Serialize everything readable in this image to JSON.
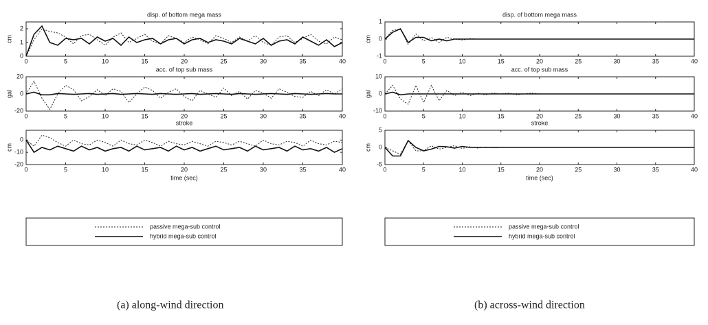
{
  "chart_data": [
    {
      "type": "line",
      "title": "disp. of bottom mega mass",
      "ylabel": "cm",
      "x": [
        0,
        1,
        2,
        3,
        4,
        5,
        6,
        7,
        8,
        9,
        10,
        11,
        12,
        13,
        14,
        15,
        16,
        17,
        18,
        19,
        20,
        21,
        22,
        23,
        24,
        25,
        26,
        27,
        28,
        29,
        30,
        31,
        32,
        33,
        34,
        35,
        36,
        37,
        38,
        39,
        40
      ],
      "xlim": [
        0,
        40
      ],
      "xticks": [
        0,
        5,
        10,
        15,
        20,
        25,
        30,
        35,
        40
      ],
      "ylim": [
        0,
        2.5
      ],
      "yticks": [
        0,
        1,
        2
      ],
      "series": [
        {
          "name": "passive mega-sub control",
          "color": "#222222",
          "dash": "2,2",
          "values": [
            0,
            1.2,
            2.0,
            1.8,
            1.7,
            1.4,
            0.9,
            1.5,
            1.6,
            1.2,
            0.8,
            1.4,
            1.7,
            1.0,
            1.3,
            1.6,
            1.1,
            0.9,
            1.5,
            1.3,
            1.0,
            1.4,
            1.2,
            0.9,
            1.5,
            1.3,
            1.0,
            1.4,
            1.1,
            1.5,
            1.0,
            0.8,
            1.4,
            1.5,
            1.0,
            1.3,
            1.6,
            1.1,
            0.9,
            1.4,
            1.2
          ]
        },
        {
          "name": "hybrid mega-sub control",
          "color": "#111111",
          "values": [
            0,
            1.6,
            2.2,
            1.0,
            0.8,
            1.3,
            1.2,
            1.3,
            0.9,
            1.4,
            1.1,
            1.3,
            0.8,
            1.4,
            1.0,
            1.2,
            1.3,
            0.9,
            1.2,
            1.3,
            0.9,
            1.2,
            1.3,
            1.0,
            1.2,
            1.1,
            0.9,
            1.3,
            1.1,
            0.9,
            1.3,
            0.8,
            1.1,
            1.2,
            0.9,
            1.4,
            1.1,
            0.8,
            1.2,
            0.7,
            1.0
          ]
        }
      ]
    },
    {
      "type": "line",
      "title": "acc. of top sub mass",
      "ylabel": "gal",
      "x": [
        0,
        1,
        2,
        3,
        4,
        5,
        6,
        7,
        8,
        9,
        10,
        11,
        12,
        13,
        14,
        15,
        16,
        17,
        18,
        19,
        20,
        21,
        22,
        23,
        24,
        25,
        26,
        27,
        28,
        29,
        30,
        31,
        32,
        33,
        34,
        35,
        36,
        37,
        38,
        39,
        40
      ],
      "xlim": [
        0,
        40
      ],
      "xticks": [
        0,
        5,
        10,
        15,
        20,
        25,
        30,
        35,
        40
      ],
      "ylim": [
        -20,
        20
      ],
      "yticks": [
        -20,
        0,
        20
      ],
      "series": [
        {
          "name": "passive mega-sub control",
          "color": "#222222",
          "dash": "2,2",
          "values": [
            0,
            15,
            -5,
            -18,
            0,
            10,
            5,
            -8,
            -3,
            5,
            -2,
            6,
            3,
            -10,
            0,
            8,
            4,
            -5,
            2,
            6,
            -3,
            -8,
            4,
            0,
            -4,
            7,
            -2,
            3,
            -6,
            4,
            1,
            -5,
            6,
            2,
            -3,
            -4,
            3,
            -2,
            5,
            0,
            6
          ]
        },
        {
          "name": "hybrid mega-sub control",
          "color": "#111111",
          "values": [
            0,
            2,
            -1,
            -1,
            0.5,
            0,
            -0.5,
            0,
            0.5,
            -0.5,
            0,
            0.5,
            -0.5,
            0,
            0.5,
            0,
            -0.5,
            0.5,
            0,
            -0.5,
            0,
            0.5,
            -0.5,
            0,
            0.5,
            0,
            -0.5,
            0.5,
            0,
            -0.5,
            0,
            0.5,
            0,
            -0.5,
            0.5,
            0,
            -0.5,
            0,
            0.5,
            0,
            0
          ]
        }
      ]
    },
    {
      "type": "line",
      "title": "stroke",
      "ylabel": "cm",
      "xlabel": "time (sec)",
      "x": [
        0,
        1,
        2,
        3,
        4,
        5,
        6,
        7,
        8,
        9,
        10,
        11,
        12,
        13,
        14,
        15,
        16,
        17,
        18,
        19,
        20,
        21,
        22,
        23,
        24,
        25,
        26,
        27,
        28,
        29,
        30,
        31,
        32,
        33,
        34,
        35,
        36,
        37,
        38,
        39,
        40
      ],
      "xlim": [
        0,
        40
      ],
      "xticks": [
        0,
        5,
        10,
        15,
        20,
        25,
        30,
        35,
        40
      ],
      "ylim": [
        -20,
        8
      ],
      "yticks": [
        -20,
        -10,
        0
      ],
      "series": [
        {
          "name": "passive mega-sub control",
          "color": "#222222",
          "dash": "2,2",
          "values": [
            0,
            -5,
            4,
            2,
            -2,
            -5,
            0,
            -3,
            -4,
            0,
            -2,
            -5,
            0,
            -3,
            -4,
            0,
            -2,
            -5,
            -1,
            -3,
            -4,
            -1,
            -3,
            -5,
            -1,
            -2,
            -4,
            -1,
            -3,
            -5,
            0,
            -3,
            -4,
            -1,
            -2,
            -5,
            0,
            -3,
            -4,
            -1,
            -2
          ]
        },
        {
          "name": "hybrid mega-sub control",
          "color": "#111111",
          "values": [
            0,
            -10,
            -6,
            -8,
            -5,
            -7,
            -9,
            -5,
            -8,
            -6,
            -9,
            -7,
            -6,
            -9,
            -5,
            -8,
            -7,
            -6,
            -9,
            -5,
            -8,
            -6,
            -9,
            -7,
            -5,
            -8,
            -7,
            -6,
            -9,
            -5,
            -8,
            -7,
            -6,
            -9,
            -5,
            -8,
            -7,
            -9,
            -6,
            -10,
            -7
          ]
        }
      ]
    },
    {
      "type": "line",
      "title": "disp. of bottom mega mass",
      "ylabel": "cm",
      "x": [
        0,
        1,
        2,
        3,
        4,
        5,
        6,
        7,
        8,
        9,
        10,
        11,
        12,
        13,
        14,
        15,
        16,
        17,
        18,
        19,
        20,
        21,
        22,
        23,
        24,
        25,
        26,
        27,
        28,
        29,
        30,
        31,
        32,
        33,
        34,
        35,
        36,
        37,
        38,
        39,
        40
      ],
      "xlim": [
        0,
        40
      ],
      "xticks": [
        0,
        5,
        10,
        15,
        20,
        25,
        30,
        35,
        40
      ],
      "ylim": [
        -1,
        1
      ],
      "yticks": [
        -1,
        0,
        1
      ],
      "series": [
        {
          "name": "passive mega-sub control",
          "color": "#222222",
          "dash": "2,2",
          "values": [
            0,
            0.5,
            0.6,
            -0.3,
            0.3,
            -0.1,
            0.1,
            -0.2,
            0.1,
            0,
            -0.05,
            0.02,
            0,
            0,
            0,
            0,
            0,
            0,
            0,
            0,
            0,
            0,
            0,
            0,
            0,
            0,
            0,
            0,
            0,
            0,
            0,
            0,
            0,
            0,
            0,
            0,
            0,
            0,
            0,
            0,
            0
          ]
        },
        {
          "name": "hybrid mega-sub control",
          "color": "#111111",
          "values": [
            0,
            0.4,
            0.6,
            -0.2,
            0.1,
            0.1,
            -0.1,
            0,
            -0.1,
            0,
            0,
            0,
            0,
            0,
            0,
            0,
            0,
            0,
            0,
            0,
            0,
            0,
            0,
            0,
            0,
            0,
            0,
            0,
            0,
            0,
            0,
            0,
            0,
            0,
            0,
            0,
            0,
            0,
            0,
            0,
            0
          ]
        }
      ]
    },
    {
      "type": "line",
      "title": "acc. of top sub mass",
      "ylabel": "gal",
      "x": [
        0,
        1,
        2,
        3,
        4,
        5,
        6,
        7,
        8,
        9,
        10,
        11,
        12,
        13,
        14,
        15,
        16,
        17,
        18,
        19,
        20,
        21,
        22,
        23,
        24,
        25,
        26,
        27,
        28,
        29,
        30,
        31,
        32,
        33,
        34,
        35,
        36,
        37,
        38,
        39,
        40
      ],
      "xlim": [
        0,
        40
      ],
      "xticks": [
        0,
        5,
        10,
        15,
        20,
        25,
        30,
        35,
        40
      ],
      "ylim": [
        -10,
        10
      ],
      "yticks": [
        -10,
        0,
        10
      ],
      "series": [
        {
          "name": "passive mega-sub control",
          "color": "#222222",
          "dash": "2,2",
          "values": [
            0,
            5,
            -3,
            -6,
            5,
            -5,
            5,
            -4,
            2,
            -1,
            1,
            -1,
            0.5,
            -0.5,
            0.5,
            0,
            0.5,
            -0.5,
            0,
            0.5,
            0,
            0,
            0,
            0,
            0,
            0,
            0,
            0,
            0,
            0,
            0,
            0,
            0,
            0,
            0,
            0,
            0,
            0,
            0,
            0,
            0
          ]
        },
        {
          "name": "hybrid mega-sub control",
          "color": "#111111",
          "values": [
            0,
            1,
            -0.5,
            0,
            0,
            0,
            0,
            0,
            0,
            0,
            0,
            0,
            0,
            0,
            0,
            0,
            0,
            0,
            0,
            0,
            0,
            0,
            0,
            0,
            0,
            0,
            0,
            0,
            0,
            0,
            0,
            0,
            0,
            0,
            0,
            0,
            0,
            0,
            0,
            0,
            0
          ]
        }
      ]
    },
    {
      "type": "line",
      "title": "stroke",
      "ylabel": "cm",
      "xlabel": "time (sec)",
      "x": [
        0,
        1,
        2,
        3,
        4,
        5,
        6,
        7,
        8,
        9,
        10,
        11,
        12,
        13,
        14,
        15,
        16,
        17,
        18,
        19,
        20,
        21,
        22,
        23,
        24,
        25,
        26,
        27,
        28,
        29,
        30,
        31,
        32,
        33,
        34,
        35,
        36,
        37,
        38,
        39,
        40
      ],
      "xlim": [
        0,
        40
      ],
      "xticks": [
        0,
        5,
        10,
        15,
        20,
        25,
        30,
        35,
        40
      ],
      "ylim": [
        -5,
        5
      ],
      "yticks": [
        -5,
        0,
        5
      ],
      "series": [
        {
          "name": "passive mega-sub control",
          "color": "#222222",
          "dash": "2,2",
          "values": [
            0,
            -1,
            -2,
            2,
            -1,
            -1,
            0.5,
            -0.5,
            0,
            0.5,
            -0.3,
            0.2,
            -0.2,
            0.1,
            -0.1,
            0,
            0,
            0,
            0,
            0,
            0,
            0,
            0,
            0,
            0,
            0,
            0,
            0,
            0,
            0,
            0,
            0,
            0,
            0,
            0,
            0,
            0,
            0,
            0,
            0,
            0
          ]
        },
        {
          "name": "hybrid mega-sub control",
          "color": "#111111",
          "values": [
            0,
            -2.5,
            -2.5,
            2,
            0,
            -1,
            -0.5,
            0.3,
            0.2,
            -0.2,
            0.3,
            0,
            0,
            0,
            0,
            0,
            0,
            0,
            0,
            0,
            0,
            0,
            0,
            0,
            0,
            0,
            0,
            0,
            0,
            0,
            0,
            0,
            0,
            0,
            0,
            0,
            0,
            0,
            0,
            0,
            0
          ]
        }
      ]
    }
  ],
  "captions": [
    "(a) along-wind direction",
    "(b) across-wind direction"
  ]
}
